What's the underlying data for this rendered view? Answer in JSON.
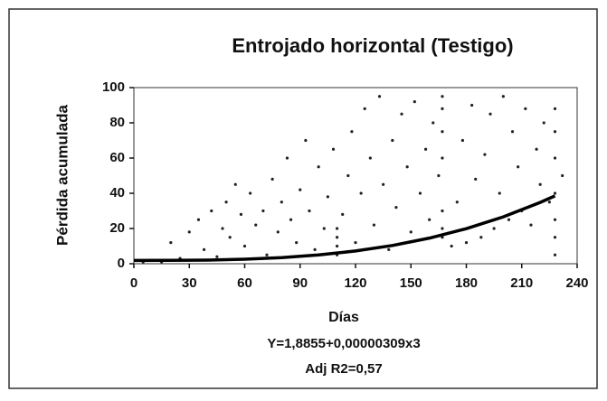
{
  "chart_data": {
    "type": "scatter",
    "title": "Entrojado horizontal (Testigo)",
    "x_label": "Días",
    "y_label": "Pérdida acumulada",
    "annotations": [
      "Y=1,8855+0,00000309x3",
      "Adj R2=0,57"
    ],
    "xlim": [
      0,
      240
    ],
    "ylim": [
      0,
      100
    ],
    "xticks": [
      0,
      30,
      60,
      90,
      120,
      150,
      180,
      210,
      240
    ],
    "yticks": [
      0,
      20,
      40,
      60,
      80,
      100
    ],
    "series": [
      {
        "type": "scatter",
        "color": "#222222",
        "x": [
          5,
          10,
          15,
          20,
          25,
          30,
          35,
          38,
          42,
          45,
          48,
          50,
          52,
          55,
          58,
          60,
          63,
          66,
          70,
          72,
          75,
          78,
          80,
          83,
          85,
          88,
          90,
          93,
          95,
          98,
          100,
          103,
          105,
          108,
          110,
          110,
          110,
          110,
          113,
          116,
          118,
          120,
          123,
          125,
          128,
          130,
          133,
          135,
          138,
          140,
          142,
          145,
          148,
          150,
          152,
          155,
          158,
          160,
          162,
          165,
          167,
          167,
          167,
          167,
          167,
          167,
          167,
          172,
          175,
          178,
          180,
          183,
          185,
          188,
          190,
          193,
          195,
          198,
          200,
          203,
          205,
          208,
          210,
          212,
          215,
          218,
          220,
          222,
          225,
          228,
          228,
          228,
          228,
          228,
          228,
          228,
          232
        ],
        "values": [
          1,
          2,
          1,
          12,
          3,
          18,
          25,
          8,
          30,
          4,
          20,
          35,
          15,
          45,
          28,
          10,
          40,
          22,
          30,
          5,
          48,
          18,
          35,
          60,
          25,
          12,
          42,
          70,
          30,
          8,
          55,
          20,
          38,
          65,
          5,
          10,
          15,
          20,
          28,
          50,
          75,
          12,
          40,
          88,
          60,
          22,
          95,
          45,
          8,
          70,
          32,
          85,
          55,
          18,
          92,
          40,
          65,
          25,
          80,
          50,
          15,
          20,
          30,
          60,
          75,
          88,
          95,
          10,
          35,
          70,
          12,
          90,
          48,
          15,
          62,
          85,
          20,
          40,
          95,
          25,
          75,
          55,
          30,
          88,
          22,
          65,
          45,
          80,
          35,
          5,
          15,
          25,
          40,
          60,
          75,
          88,
          50
        ]
      },
      {
        "type": "line",
        "color": "#000000",
        "x": [
          0,
          20,
          40,
          60,
          80,
          100,
          120,
          140,
          160,
          180,
          200,
          220,
          228
        ],
        "values": [
          1.89,
          1.91,
          2.08,
          2.55,
          3.47,
          4.98,
          7.23,
          10.36,
          14.54,
          19.91,
          26.61,
          34.79,
          38.51
        ]
      }
    ]
  }
}
